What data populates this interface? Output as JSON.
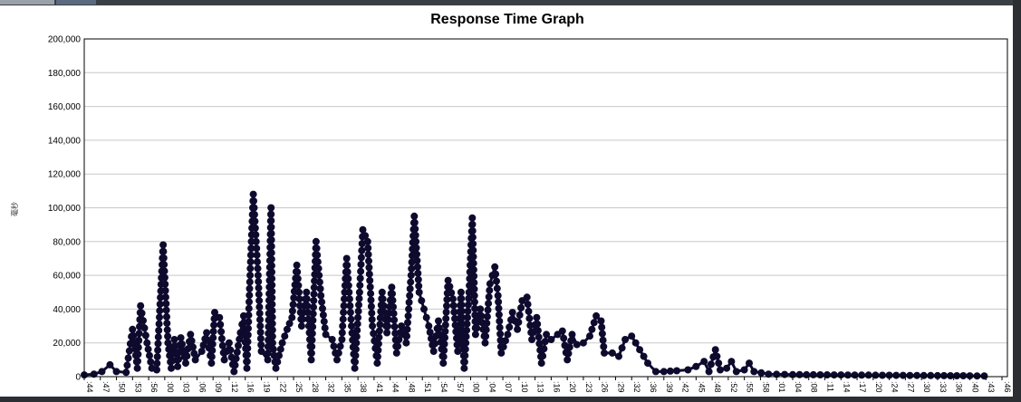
{
  "chart_data": {
    "type": "line",
    "title": "Response Time Graph",
    "ylabel": "毫秒",
    "ylim": [
      0,
      200000
    ],
    "yticks": [
      "0",
      "20,000",
      "40,000",
      "60,000",
      "80,000",
      "100,000",
      "120,000",
      "140,000",
      "160,000",
      "180,000",
      "200,000"
    ],
    "grid": true,
    "legend": "none",
    "xticks": [
      ":44",
      ":47",
      ":50",
      ":53",
      ":56",
      ":00",
      ":03",
      ":06",
      ":09",
      ":12",
      ":16",
      ":19",
      ":22",
      ":25",
      ":28",
      ":32",
      ":35",
      ":38",
      ":41",
      ":44",
      ":48",
      ":51",
      ":54",
      ":57",
      ":00",
      ":04",
      ":07",
      ":10",
      ":13",
      ":16",
      ":20",
      ":23",
      ":26",
      ":29",
      ":32",
      ":36",
      ":39",
      ":42",
      ":45",
      ":48",
      ":52",
      ":55",
      ":58",
      ":01",
      ":04",
      ":08",
      ":11",
      ":14",
      ":17",
      ":20",
      ":24",
      ":27",
      ":30",
      ":33",
      ":36",
      ":40",
      ":43",
      ":46"
    ],
    "series": [
      {
        "color": "#0d0a2e",
        "points": [
          [
            0,
            1000
          ],
          [
            0.6,
            1500
          ],
          [
            1.1,
            3000
          ],
          [
            1.6,
            7000
          ],
          [
            2.0,
            3000
          ],
          [
            2.6,
            2500
          ],
          [
            3.0,
            28000
          ],
          [
            3.3,
            5000
          ],
          [
            3.5,
            42000
          ],
          [
            3.9,
            20000
          ],
          [
            4.2,
            5000
          ],
          [
            4.5,
            4000
          ],
          [
            4.9,
            78000
          ],
          [
            5.2,
            20000
          ],
          [
            5.4,
            5000
          ],
          [
            5.6,
            22000
          ],
          [
            5.8,
            6000
          ],
          [
            6.0,
            23000
          ],
          [
            6.3,
            8000
          ],
          [
            6.6,
            25000
          ],
          [
            6.9,
            10000
          ],
          [
            7.3,
            15000
          ],
          [
            7.6,
            26000
          ],
          [
            7.9,
            8000
          ],
          [
            8.1,
            38000
          ],
          [
            8.4,
            35000
          ],
          [
            8.7,
            10000
          ],
          [
            9.0,
            20000
          ],
          [
            9.3,
            3000
          ],
          [
            9.7,
            26000
          ],
          [
            9.9,
            36000
          ],
          [
            10.1,
            5000
          ],
          [
            10.3,
            60000
          ],
          [
            10.5,
            108000
          ],
          [
            10.8,
            60000
          ],
          [
            11.0,
            15000
          ],
          [
            11.4,
            10000
          ],
          [
            11.6,
            100000
          ],
          [
            11.7,
            20000
          ],
          [
            11.9,
            5000
          ],
          [
            12.3,
            20000
          ],
          [
            12.6,
            28000
          ],
          [
            12.9,
            35000
          ],
          [
            13.2,
            66000
          ],
          [
            13.5,
            30000
          ],
          [
            13.8,
            50000
          ],
          [
            14.1,
            10000
          ],
          [
            14.4,
            80000
          ],
          [
            14.7,
            48000
          ],
          [
            15.0,
            25000
          ],
          [
            15.4,
            22000
          ],
          [
            15.7,
            10000
          ],
          [
            16.0,
            22000
          ],
          [
            16.3,
            70000
          ],
          [
            16.6,
            30000
          ],
          [
            16.8,
            5000
          ],
          [
            17.1,
            50000
          ],
          [
            17.3,
            87000
          ],
          [
            17.6,
            80000
          ],
          [
            17.9,
            30000
          ],
          [
            18.2,
            8000
          ],
          [
            18.5,
            50000
          ],
          [
            18.8,
            26000
          ],
          [
            19.1,
            53000
          ],
          [
            19.4,
            14000
          ],
          [
            19.7,
            30000
          ],
          [
            20.0,
            20000
          ],
          [
            20.3,
            60000
          ],
          [
            20.5,
            95000
          ],
          [
            20.8,
            50000
          ],
          [
            21.1,
            40000
          ],
          [
            21.4,
            30000
          ],
          [
            21.7,
            15000
          ],
          [
            22.0,
            33000
          ],
          [
            22.3,
            8000
          ],
          [
            22.6,
            57000
          ],
          [
            22.9,
            46000
          ],
          [
            23.2,
            15000
          ],
          [
            23.4,
            50000
          ],
          [
            23.6,
            5000
          ],
          [
            23.9,
            50000
          ],
          [
            24.1,
            94000
          ],
          [
            24.3,
            25000
          ],
          [
            24.6,
            40000
          ],
          [
            24.9,
            20000
          ],
          [
            25.2,
            55000
          ],
          [
            25.5,
            65000
          ],
          [
            25.7,
            48000
          ],
          [
            25.9,
            14000
          ],
          [
            26.3,
            25000
          ],
          [
            26.6,
            38000
          ],
          [
            26.9,
            28000
          ],
          [
            27.2,
            45000
          ],
          [
            27.5,
            47000
          ],
          [
            27.8,
            22000
          ],
          [
            28.1,
            35000
          ],
          [
            28.4,
            8000
          ],
          [
            28.7,
            25000
          ],
          [
            29.0,
            22000
          ],
          [
            29.4,
            25000
          ],
          [
            29.7,
            27000
          ],
          [
            30.0,
            10000
          ],
          [
            30.3,
            25000
          ],
          [
            30.6,
            19000
          ],
          [
            31.0,
            20000
          ],
          [
            31.4,
            24000
          ],
          [
            31.8,
            36000
          ],
          [
            32.1,
            33000
          ],
          [
            32.3,
            14000
          ],
          [
            32.8,
            14000
          ],
          [
            33.2,
            12000
          ],
          [
            33.6,
            22000
          ],
          [
            34.0,
            24000
          ],
          [
            34.5,
            16000
          ],
          [
            35.0,
            8000
          ],
          [
            35.5,
            3000
          ],
          [
            36.0,
            3000
          ],
          [
            36.8,
            3500
          ],
          [
            37.5,
            4000
          ],
          [
            38.0,
            6000
          ],
          [
            38.5,
            9000
          ],
          [
            38.8,
            3000
          ],
          [
            39.2,
            16000
          ],
          [
            39.5,
            4000
          ],
          [
            39.9,
            5000
          ],
          [
            40.2,
            9000
          ],
          [
            40.5,
            3000
          ],
          [
            41.0,
            4000
          ],
          [
            41.3,
            8000
          ],
          [
            41.6,
            3000
          ],
          [
            42.5,
            1500
          ],
          [
            44.0,
            1200
          ],
          [
            47.0,
            1000
          ],
          [
            50.0,
            800
          ],
          [
            53.0,
            600
          ],
          [
            55.0,
            500
          ],
          [
            55.9,
            400
          ]
        ]
      }
    ]
  }
}
